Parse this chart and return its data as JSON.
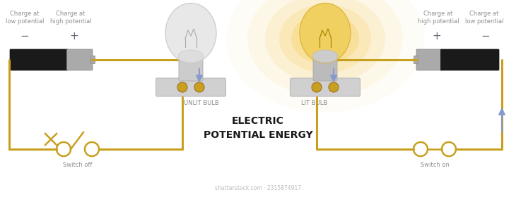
{
  "bg_color": "#ffffff",
  "title_line1": "ELECTRIC",
  "title_line2": "POTENTIAL ENERGY",
  "title_color": "#1a1a1a",
  "title_fontsize": 10,
  "wire_color": "#c8a020",
  "wire_lw": 2.2,
  "arrow_color": "#8899cc",
  "text_color": "#909090",
  "label_color": "#888888",
  "pm_color": "#666677",
  "cross_color": "#c8a020",
  "battery_dark": "#1a1a1a",
  "battery_mid": "#555555",
  "battery_light": "#aaaaaa",
  "shutterstock_text": "shutterstock.com · 2315874917",
  "shutterstock_color": "#bbbbbb",
  "shutterstock_fontsize": 5.5
}
